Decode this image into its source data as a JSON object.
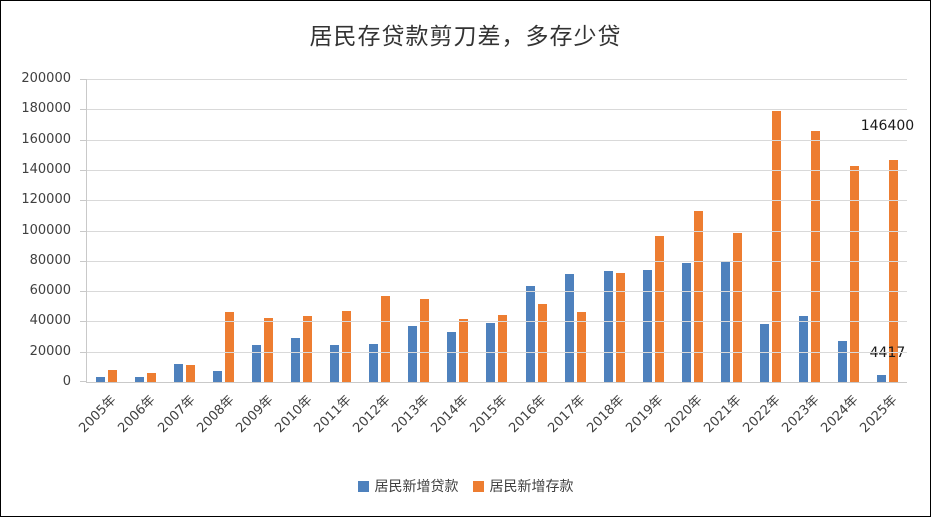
{
  "chart_data": {
    "type": "bar",
    "title": "居民存贷款剪刀差，多存少贷",
    "categories": [
      "2005年",
      "2006年",
      "2007年",
      "2008年",
      "2009年",
      "2010年",
      "2011年",
      "2012年",
      "2013年",
      "2014年",
      "2015年",
      "2016年",
      "2017年",
      "2018年",
      "2019年",
      "2020年",
      "2021年",
      "2022年",
      "2023年",
      "2024年",
      "2025年"
    ],
    "series": [
      {
        "name": "居民新增贷款",
        "color": "#4e81bd",
        "values": [
          3500,
          3000,
          12000,
          7500,
          24500,
          29000,
          24500,
          25000,
          37000,
          33000,
          39000,
          63500,
          71500,
          73500,
          74000,
          78500,
          79500,
          38500,
          43500,
          27000,
          4417
        ]
      },
      {
        "name": "居民新增存款",
        "color": "#ed7d31",
        "values": [
          8000,
          6000,
          11300,
          46000,
          42500,
          43500,
          47000,
          57000,
          55000,
          41500,
          44000,
          51500,
          46000,
          72000,
          96500,
          113000,
          98500,
          179000,
          166000,
          142500,
          146400
        ]
      }
    ],
    "ylim": [
      0,
      200000
    ],
    "ytick_interval": 20000,
    "grid": "horizontal",
    "legend_position": "bottom",
    "annotations": [
      {
        "series_index": 0,
        "category_index": 20,
        "text": "4417",
        "dy": 14
      },
      {
        "series_index": 1,
        "category_index": 20,
        "text": "146400",
        "dy": 26
      }
    ]
  }
}
